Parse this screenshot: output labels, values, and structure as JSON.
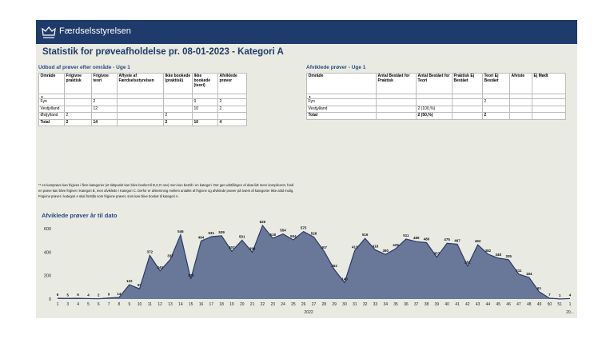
{
  "header": {
    "brand": "Færdselsstyrelsen"
  },
  "title": "Statistik for prøveafholdelse pr. 08-01-2023 - Kategori A",
  "tables": [
    {
      "title": "Udbud af prøver efter område - Uge 1",
      "columns": [
        "Område",
        "Frigivne praktisk",
        "Frigivne teori",
        "Aflyste af Færdselsstyrelsen",
        "Ikke bookede (praktisk)",
        "Ikke bookede (teori)",
        "Afviklede prøver"
      ],
      "sort_marker": "▲",
      "rows": [
        [
          "Fyn",
          null,
          2,
          null,
          null,
          0,
          2
        ],
        [
          "Vestjylland",
          null,
          12,
          null,
          null,
          10,
          2
        ],
        [
          "Østjylland",
          2,
          null,
          null,
          2,
          null,
          null
        ],
        [
          "Total",
          2,
          14,
          null,
          2,
          10,
          4
        ]
      ]
    },
    {
      "title": "Afviklede prøver - Uge 1",
      "columns": [
        "Område",
        "Antal Bestået for Praktisk",
        "Antal Bestået for Teori",
        "Praktisk Ej Bestået",
        "Teori Ej Bestået",
        "Afviste",
        "Ej Mødt"
      ],
      "sort_marker": "▲",
      "rows": [
        [
          "Fyn",
          null,
          null,
          null,
          2,
          null,
          null
        ],
        [
          "Vestjylland",
          null,
          "2 (100,%)",
          null,
          null,
          null,
          null
        ],
        [
          "Total",
          null,
          "2 (50,%)",
          null,
          2,
          null,
          null
        ]
      ]
    }
  ],
  "footnote": "** en kamprøve kan frigives i flere kategorier (et tidspunkt kan blive booket til B,C,D osv) men kun bestilt i en kategori. Det gør udstillingen af data lidt mere kompliceret, fordi en prøve kan blive frigivet i Kategori B, men afviklede i Kategori C. Derfor er afstemning mellem antallet af frigivne og afviklede prøver på tværs af kategorier ikke altid mulig. Frigivne prøver i kategori A skal forstås som frigivne prøver, som kan blive booket til kategori A.",
  "chart_data": {
    "type": "area",
    "title": "Afviklede prøver år til dato",
    "categories": [
      "1",
      "3",
      "4",
      "5",
      "6",
      "7",
      "8",
      "9",
      "10",
      "11",
      "12",
      "13",
      "14",
      "15",
      "16",
      "17",
      "18",
      "19",
      "20",
      "21",
      "22",
      "23",
      "24",
      "25",
      "26",
      "27",
      "28",
      "29",
      "30",
      "31",
      "32",
      "33",
      "34",
      "35",
      "36",
      "37",
      "38",
      "39",
      "40",
      "41",
      "42",
      "43",
      "44",
      "45",
      "46",
      "47",
      "48",
      "49",
      "50",
      "51",
      "1"
    ],
    "values": [
      6,
      5,
      6,
      4,
      2,
      9,
      14,
      122,
      87,
      372,
      240,
      337,
      546,
      170,
      494,
      531,
      539,
      407,
      501,
      398,
      626,
      518,
      554,
      504,
      575,
      528,
      407,
      252,
      140,
      413,
      516,
      418,
      380,
      429,
      511,
      489,
      480,
      357,
      475,
      467,
      281,
      462,
      382,
      348,
      335,
      211,
      184,
      61,
      7,
      1,
      4
    ],
    "year_labels": [
      "2022",
      "20..."
    ],
    "color": "#5b6a90",
    "line_color": "#2b3a64",
    "ylim": [
      0,
      640
    ],
    "yticks": [
      0,
      200,
      400,
      600
    ],
    "grid": false
  }
}
